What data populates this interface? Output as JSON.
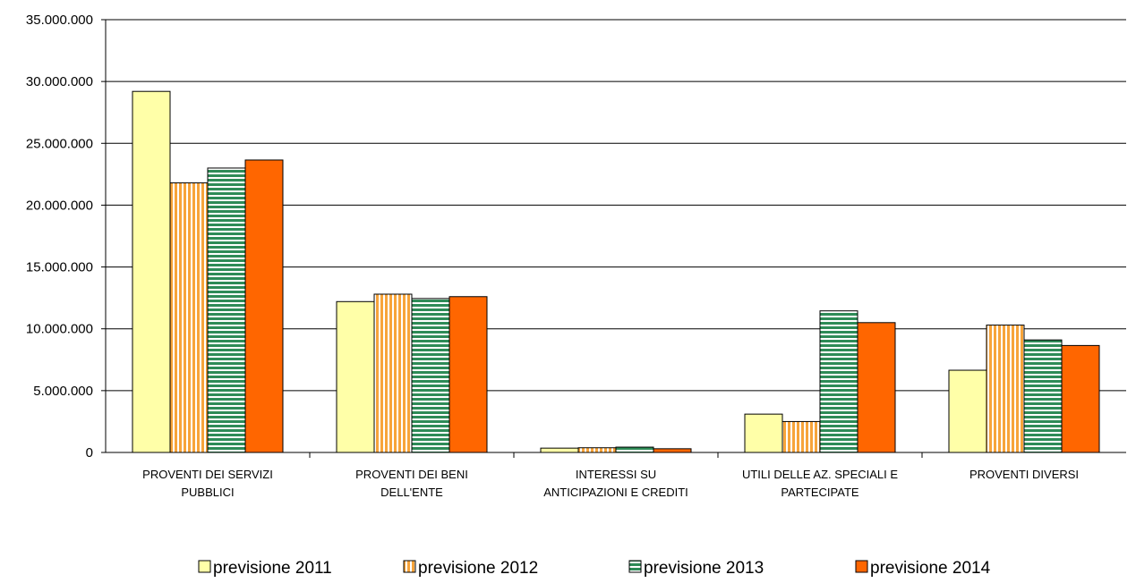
{
  "chart_data": {
    "type": "bar",
    "title": "",
    "xlabel": "",
    "ylabel": "",
    "ylim": [
      0,
      35000000
    ],
    "yticks": [
      0,
      5000000,
      10000000,
      15000000,
      20000000,
      25000000,
      30000000,
      35000000
    ],
    "ytick_labels": [
      "0",
      "5.000.000",
      "10.000.000",
      "15.000.000",
      "20.000.000",
      "25.000.000",
      "30.000.000",
      "35.000.000"
    ],
    "grid": true,
    "legend_position": "bottom",
    "categories": [
      [
        "PROVENTI DEI SERVIZI",
        "PUBBLICI"
      ],
      [
        "PROVENTI DEI BENI",
        "DELL'ENTE"
      ],
      [
        "INTERESSI SU",
        "ANTICIPAZIONI E CREDITI"
      ],
      [
        "UTILI DELLE AZ. SPECIALI E",
        "PARTECIPATE"
      ],
      [
        "PROVENTI DIVERSI"
      ]
    ],
    "series": [
      {
        "name": "previsione 2011",
        "color": "#FFFFA8",
        "pattern": "solid",
        "values": [
          29200000,
          12200000,
          350000,
          3100000,
          6650000
        ]
      },
      {
        "name": "previsione 2012",
        "color": "#F7A43A",
        "pattern": "vertical-stripes",
        "values": [
          21800000,
          12800000,
          380000,
          2500000,
          10300000
        ]
      },
      {
        "name": "previsione 2013",
        "color": "#2E8B57",
        "pattern": "horizontal-stripes",
        "values": [
          23000000,
          12450000,
          430000,
          11450000,
          9100000
        ]
      },
      {
        "name": "previsione 2014",
        "color": "#FF6600",
        "pattern": "solid",
        "values": [
          23650000,
          12600000,
          300000,
          10500000,
          8650000
        ]
      }
    ]
  }
}
